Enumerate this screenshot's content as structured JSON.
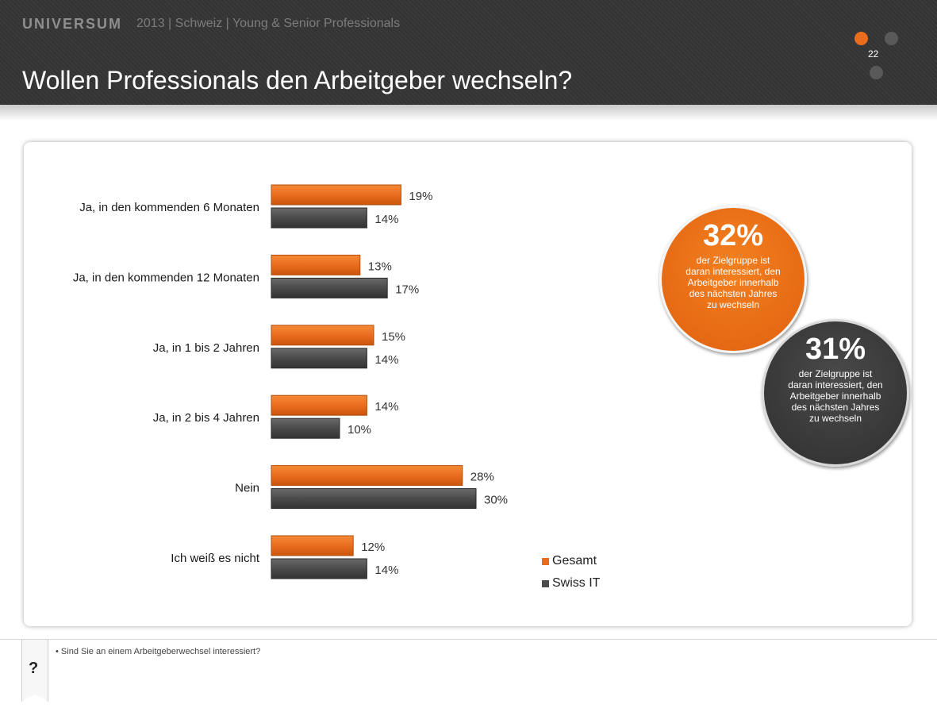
{
  "header": {
    "brand": "UNIVERSUM",
    "subtitle": "2013 | Schweiz | Young & Senior Professionals",
    "title": "Wollen Professionals den Arbeitgeber wechseln?",
    "page_number": "22"
  },
  "colors": {
    "gesamt": "#ea6d1e",
    "swiss_it": "#4a4a4a",
    "header_bg": "#373737"
  },
  "chart_data": {
    "type": "bar",
    "orientation": "horizontal",
    "categories": [
      "Ja, in den kommenden 6 Monaten",
      "Ja, in den kommenden 12 Monaten",
      "Ja, in 1 bis 2 Jahren",
      "Ja, in 2 bis 4 Jahren",
      "Nein",
      "Ich weiß es nicht"
    ],
    "series": [
      {
        "name": "Gesamt",
        "values": [
          19,
          13,
          15,
          14,
          28,
          12
        ],
        "labels": [
          "19%",
          "13%",
          "15%",
          "14%",
          "28%",
          "12%"
        ]
      },
      {
        "name": "Swiss IT",
        "values": [
          14,
          17,
          14,
          10,
          30,
          14
        ],
        "labels": [
          "14%",
          "17%",
          "14%",
          "10%",
          "30%",
          "14%"
        ]
      }
    ],
    "unit": "%",
    "title": "",
    "xlabel": "",
    "ylabel": "",
    "legend_position": "bottom-right",
    "grid": false
  },
  "callouts": {
    "gesamt": {
      "value": "32%",
      "text": "der Zielgruppe ist daran interessiert, den Arbeitgeber innerhalb des nächsten Jahres zu wechseln"
    },
    "swiss_it": {
      "value": "31%",
      "text": "der Zielgruppe ist daran interessiert, den Arbeitgeber innerhalb des nächsten Jahres zu wechseln"
    }
  },
  "footer": {
    "question_mark": "?",
    "bullet": "•",
    "question": "Sind Sie an einem Arbeitgeberwechsel interessiert?"
  }
}
